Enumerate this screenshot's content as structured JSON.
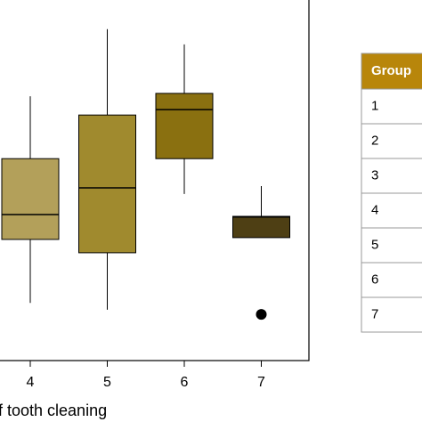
{
  "chart_data": {
    "type": "box",
    "x_label": "f tooth cleaning",
    "categories": [
      "4",
      "5",
      "6",
      "7"
    ],
    "colors": [
      "#b3a05a",
      "#a08a2e",
      "#8a7010",
      "#4e3f14"
    ],
    "boxes": [
      {
        "min": 16.0,
        "q1": 33.6,
        "median": 40.5,
        "q3": 56.0,
        "max": 73.3,
        "outliers": []
      },
      {
        "min": 14.1,
        "q1": 29.9,
        "median": 47.9,
        "q3": 68.1,
        "max": 91.9,
        "outliers": []
      },
      {
        "min": 46.2,
        "q1": 56.0,
        "median": 69.6,
        "q3": 74.1,
        "max": 87.7,
        "outliers": []
      },
      {
        "min": 34.1,
        "q1": 34.1,
        "median": 39.8,
        "q3": 40.0,
        "max": 48.4,
        "outliers": [
          12.8
        ]
      }
    ],
    "ylim": [
      0,
      100
    ]
  },
  "table": {
    "header": [
      "Group"
    ],
    "rows": [
      [
        "1"
      ],
      [
        "2"
      ],
      [
        "3"
      ],
      [
        "4"
      ],
      [
        "5"
      ],
      [
        "6"
      ],
      [
        "7"
      ]
    ]
  }
}
